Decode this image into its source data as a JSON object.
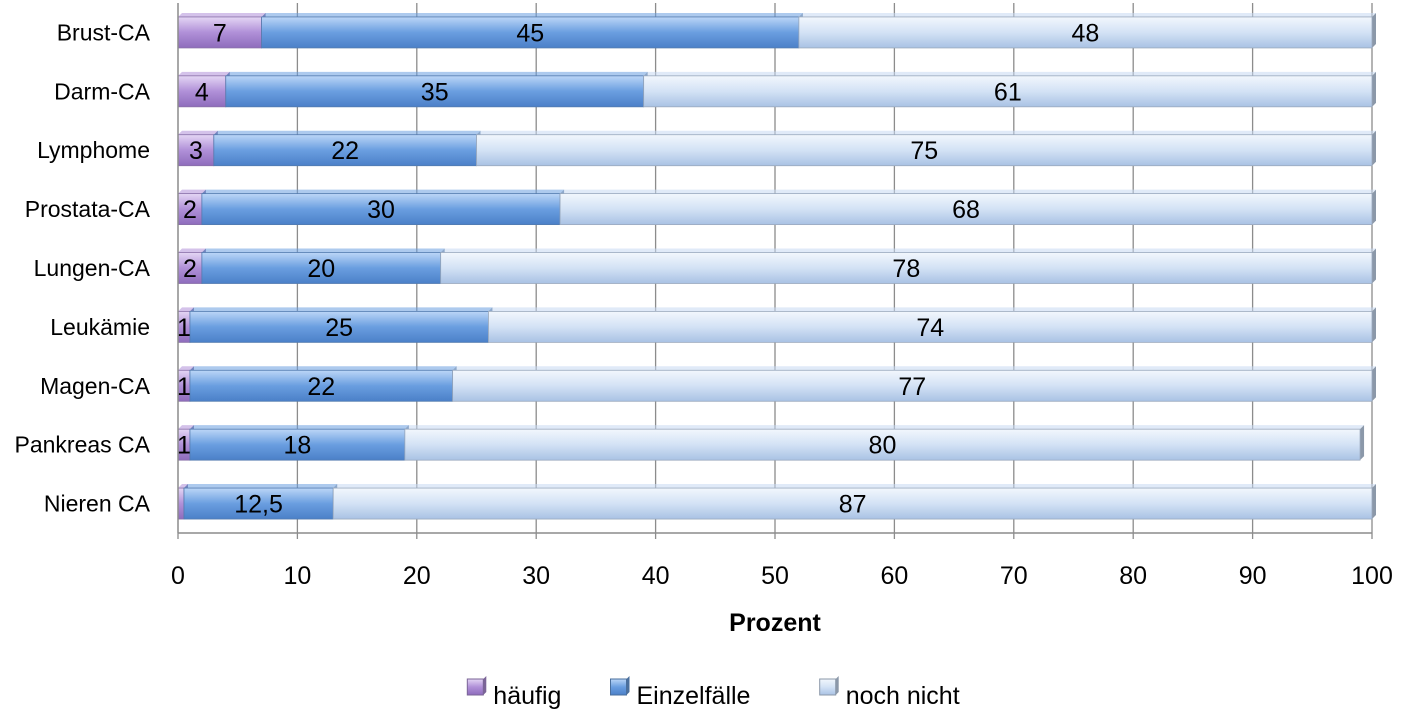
{
  "chart_data": {
    "type": "bar",
    "orientation": "horizontal",
    "stacked": true,
    "categories": [
      "Brust-CA",
      "Darm-CA",
      "Lymphome",
      "Prostata-CA",
      "Lungen-CA",
      "Leukämie",
      "Magen-CA",
      "Pankreas CA",
      "Nieren CA"
    ],
    "series": [
      {
        "name": "häufig",
        "color": "#b090d8",
        "values": [
          7,
          4,
          3,
          2,
          2,
          1,
          1,
          1,
          0.5
        ],
        "labels": [
          "7",
          "4",
          "3",
          "2",
          "2",
          "1",
          "1",
          "1",
          ""
        ]
      },
      {
        "name": "Einzelfälle",
        "color": "#6a9ee0",
        "values": [
          45,
          35,
          22,
          30,
          20,
          25,
          22,
          18,
          12.5
        ],
        "labels": [
          "45",
          "35",
          "22",
          "30",
          "20",
          "25",
          "22",
          "18",
          "12,5"
        ]
      },
      {
        "name": "noch nicht",
        "color": "#c6d9f2",
        "values": [
          48,
          61,
          75,
          68,
          78,
          74,
          77,
          80,
          87
        ],
        "labels": [
          "48",
          "61",
          "75",
          "68",
          "78",
          "74",
          "77",
          "80",
          "87"
        ]
      }
    ],
    "xlabel": "Prozent",
    "ylabel": "",
    "title": "",
    "xlim": [
      0,
      100
    ],
    "xticks": [
      "0",
      "10",
      "20",
      "30",
      "40",
      "50",
      "60",
      "70",
      "80",
      "90",
      "100"
    ],
    "grid": "vertical",
    "legend": "bottom"
  }
}
